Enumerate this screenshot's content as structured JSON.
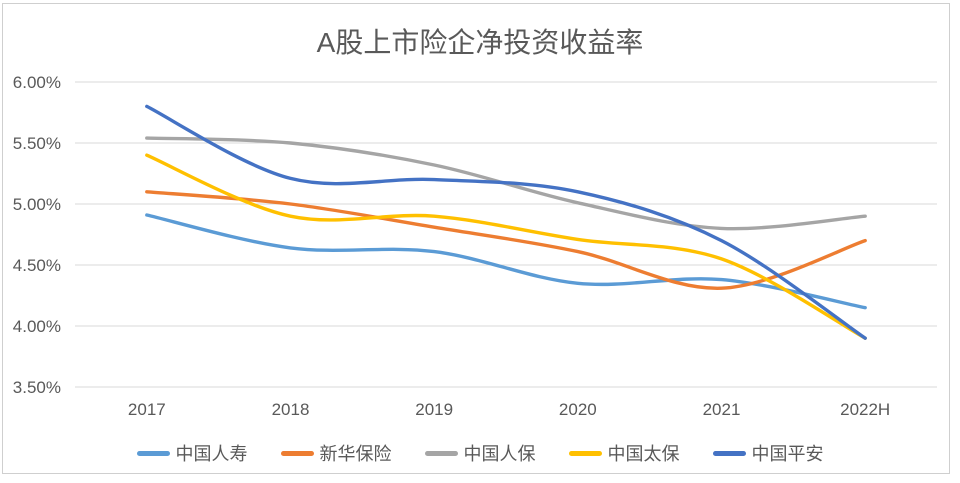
{
  "page": {
    "background": "#ffffff",
    "frame_border_color": "#cfcfcf"
  },
  "chart_data": {
    "type": "line",
    "title": "A股上市险企净投资收益率",
    "categories": [
      "2017",
      "2018",
      "2019",
      "2020",
      "2021",
      "2022H"
    ],
    "series": [
      {
        "id": "china-life",
        "name": "中国人寿",
        "color": "#5B9BD5",
        "values": [
          4.91,
          4.64,
          4.61,
          4.35,
          4.38,
          4.15
        ]
      },
      {
        "id": "xinhua-insurance",
        "name": "新华保险",
        "color": "#ED7D31",
        "values": [
          5.1,
          5.0,
          4.81,
          4.61,
          4.31,
          4.7
        ]
      },
      {
        "id": "picc",
        "name": "中国人保",
        "color": "#A5A5A5",
        "values": [
          5.54,
          5.5,
          5.32,
          5.01,
          4.8,
          4.9
        ]
      },
      {
        "id": "cpic",
        "name": "中国太保",
        "color": "#FFC000",
        "values": [
          5.4,
          4.9,
          4.9,
          4.71,
          4.55,
          3.9
        ]
      },
      {
        "id": "ping-an",
        "name": "中国平安",
        "color": "#4472C4",
        "values": [
          5.8,
          5.21,
          5.2,
          5.1,
          4.7,
          3.9
        ]
      }
    ],
    "y_axis": {
      "min": 3.5,
      "max": 6.0,
      "step": 0.5,
      "tick_labels": [
        "6.00%",
        "5.50%",
        "5.00%",
        "4.50%",
        "4.00%",
        "3.50%"
      ]
    },
    "x_axis": {
      "labels": [
        "2017",
        "2018",
        "2019",
        "2020",
        "2021",
        "2022H"
      ]
    },
    "grid": true,
    "smooth": true,
    "line_width": 3.4,
    "legend_position": "bottom",
    "colors": {
      "axis_text": "#595959",
      "title_text": "#595959",
      "gridline": "#d9d9d9"
    }
  }
}
